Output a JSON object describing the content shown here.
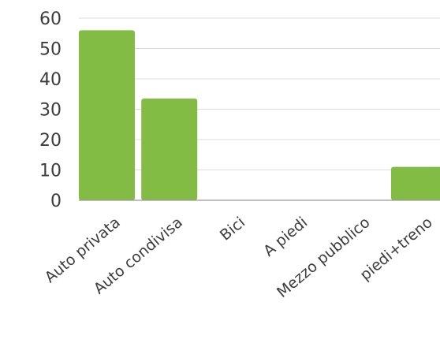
{
  "chart_data": {
    "type": "bar",
    "categories": [
      "Auto privata",
      "Auto condivisa",
      "Bici",
      "A piedi",
      "Mezzo pubblico",
      "piedi+treno"
    ],
    "values": [
      56,
      33.5,
      0,
      0,
      0,
      11
    ],
    "yticks": [
      "0",
      "10",
      "20",
      "30",
      "40",
      "50",
      "60"
    ],
    "ylim": [
      0,
      60
    ],
    "grid": true,
    "bar_color": "#82bc44"
  }
}
